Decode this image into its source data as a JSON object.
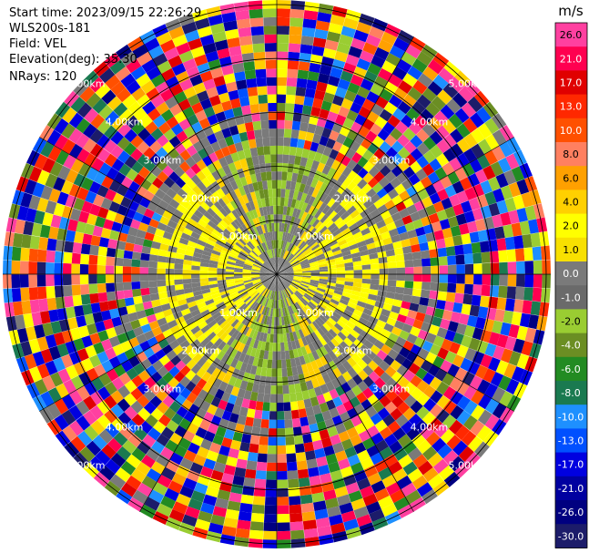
{
  "header": {
    "start_time": "Start time: 2023/09/15 22:26:29",
    "instrument": "WLS200s-181",
    "field": "Field: VEL",
    "elevation": "Elevation(deg): 35.30",
    "nrays": "NRays: 120"
  },
  "colorbar": {
    "unit": "m/s",
    "ticks": [
      "26.0",
      "21.0",
      "17.0",
      "13.0",
      "10.0",
      "8.0",
      "6.0",
      "4.0",
      "2.0",
      "1.0",
      "0.0",
      "-1.0",
      "-2.0",
      "-4.0",
      "-6.0",
      "-8.0",
      "-10.0",
      "-13.0",
      "-17.0",
      "-21.0",
      "-26.0",
      "-30.0"
    ],
    "colors": [
      "#ff40a0",
      "#ff0050",
      "#e00000",
      "#ff2800",
      "#ff5000",
      "#ff8060",
      "#ffa000",
      "#ffd000",
      "#ffff00",
      "#f8e000",
      "#7a7a7a",
      "#6a6a6a",
      "#9acd32",
      "#6b8e23",
      "#228b22",
      "#1a7a50",
      "#1e90ff",
      "#0050ff",
      "#0000e0",
      "#0000a0",
      "#000080",
      "#1c1c6a"
    ]
  },
  "chart_data": {
    "type": "ppi",
    "field": "VEL",
    "units": "m/s",
    "nrays": 120,
    "range_ring_labels_km": [
      "1.00km",
      "2.00km",
      "3.00km",
      "4.00km",
      "5.00km"
    ],
    "vmin": -30.0,
    "vmax": 26.0
  }
}
